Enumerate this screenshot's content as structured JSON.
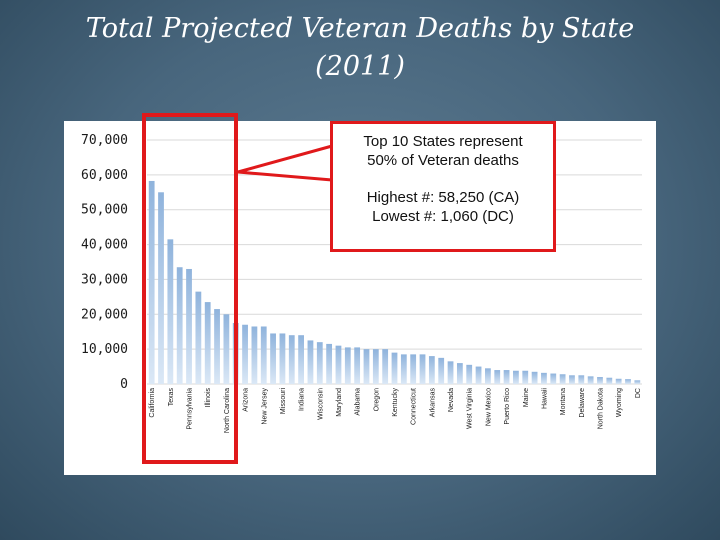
{
  "slide": {
    "title_line1": "Total Projected Veteran Deaths by State",
    "title_line2": "(2011)"
  },
  "callout": {
    "line1": "Top 10 States represent",
    "line2": "50% of Veteran deaths",
    "line3": "Highest #: 58,250 (CA)",
    "line4": "Lowest #: 1,060 (DC)"
  },
  "colors": {
    "bar_top": "#8fb3dc",
    "bar_bottom": "#dbe8f6",
    "highlight": "#e0191b"
  },
  "chart_data": {
    "type": "bar",
    "title": "",
    "xlabel": "",
    "ylabel": "",
    "ylim": [
      0,
      70000
    ],
    "y_ticks": [
      0,
      10000,
      20000,
      30000,
      40000,
      50000,
      60000,
      70000
    ],
    "y_tick_labels": [
      "0",
      "10,000",
      "20,000",
      "30,000",
      "40,000",
      "50,000",
      "60,000",
      "70,000"
    ],
    "grid": true,
    "categories": [
      "California",
      "",
      "Texas",
      "",
      "Pennsylvania",
      "",
      "Illinois",
      "",
      "North Carolina",
      "",
      "Arizona",
      "",
      "New Jersey",
      "",
      "Missouri",
      "",
      "Indiana",
      "",
      "Wisconsin",
      "",
      "Maryland",
      "",
      "Alabama",
      "",
      "Oregon",
      "",
      "Kentucky",
      "",
      "Connecticut",
      "",
      "Arkansas",
      "",
      "Nevada",
      "",
      "West Virginia",
      "",
      "New Mexico",
      "",
      "Puerto Rico",
      "",
      "Maine",
      "",
      "Hawaii",
      "",
      "Montana",
      "",
      "Delaware",
      "",
      "North Dakota",
      "",
      "Wyoming",
      "",
      "DC"
    ],
    "values": [
      58250,
      55000,
      41500,
      33500,
      33000,
      26500,
      23500,
      21500,
      20000,
      17500,
      17000,
      16500,
      16500,
      14500,
      14500,
      14000,
      14000,
      12500,
      12000,
      11500,
      11000,
      10500,
      10500,
      10000,
      10000,
      10000,
      9000,
      8500,
      8500,
      8500,
      8000,
      7500,
      6500,
      6000,
      5500,
      5000,
      4500,
      4000,
      4000,
      3800,
      3800,
      3500,
      3200,
      3000,
      2800,
      2500,
      2500,
      2200,
      2000,
      1800,
      1500,
      1400,
      1060
    ]
  }
}
